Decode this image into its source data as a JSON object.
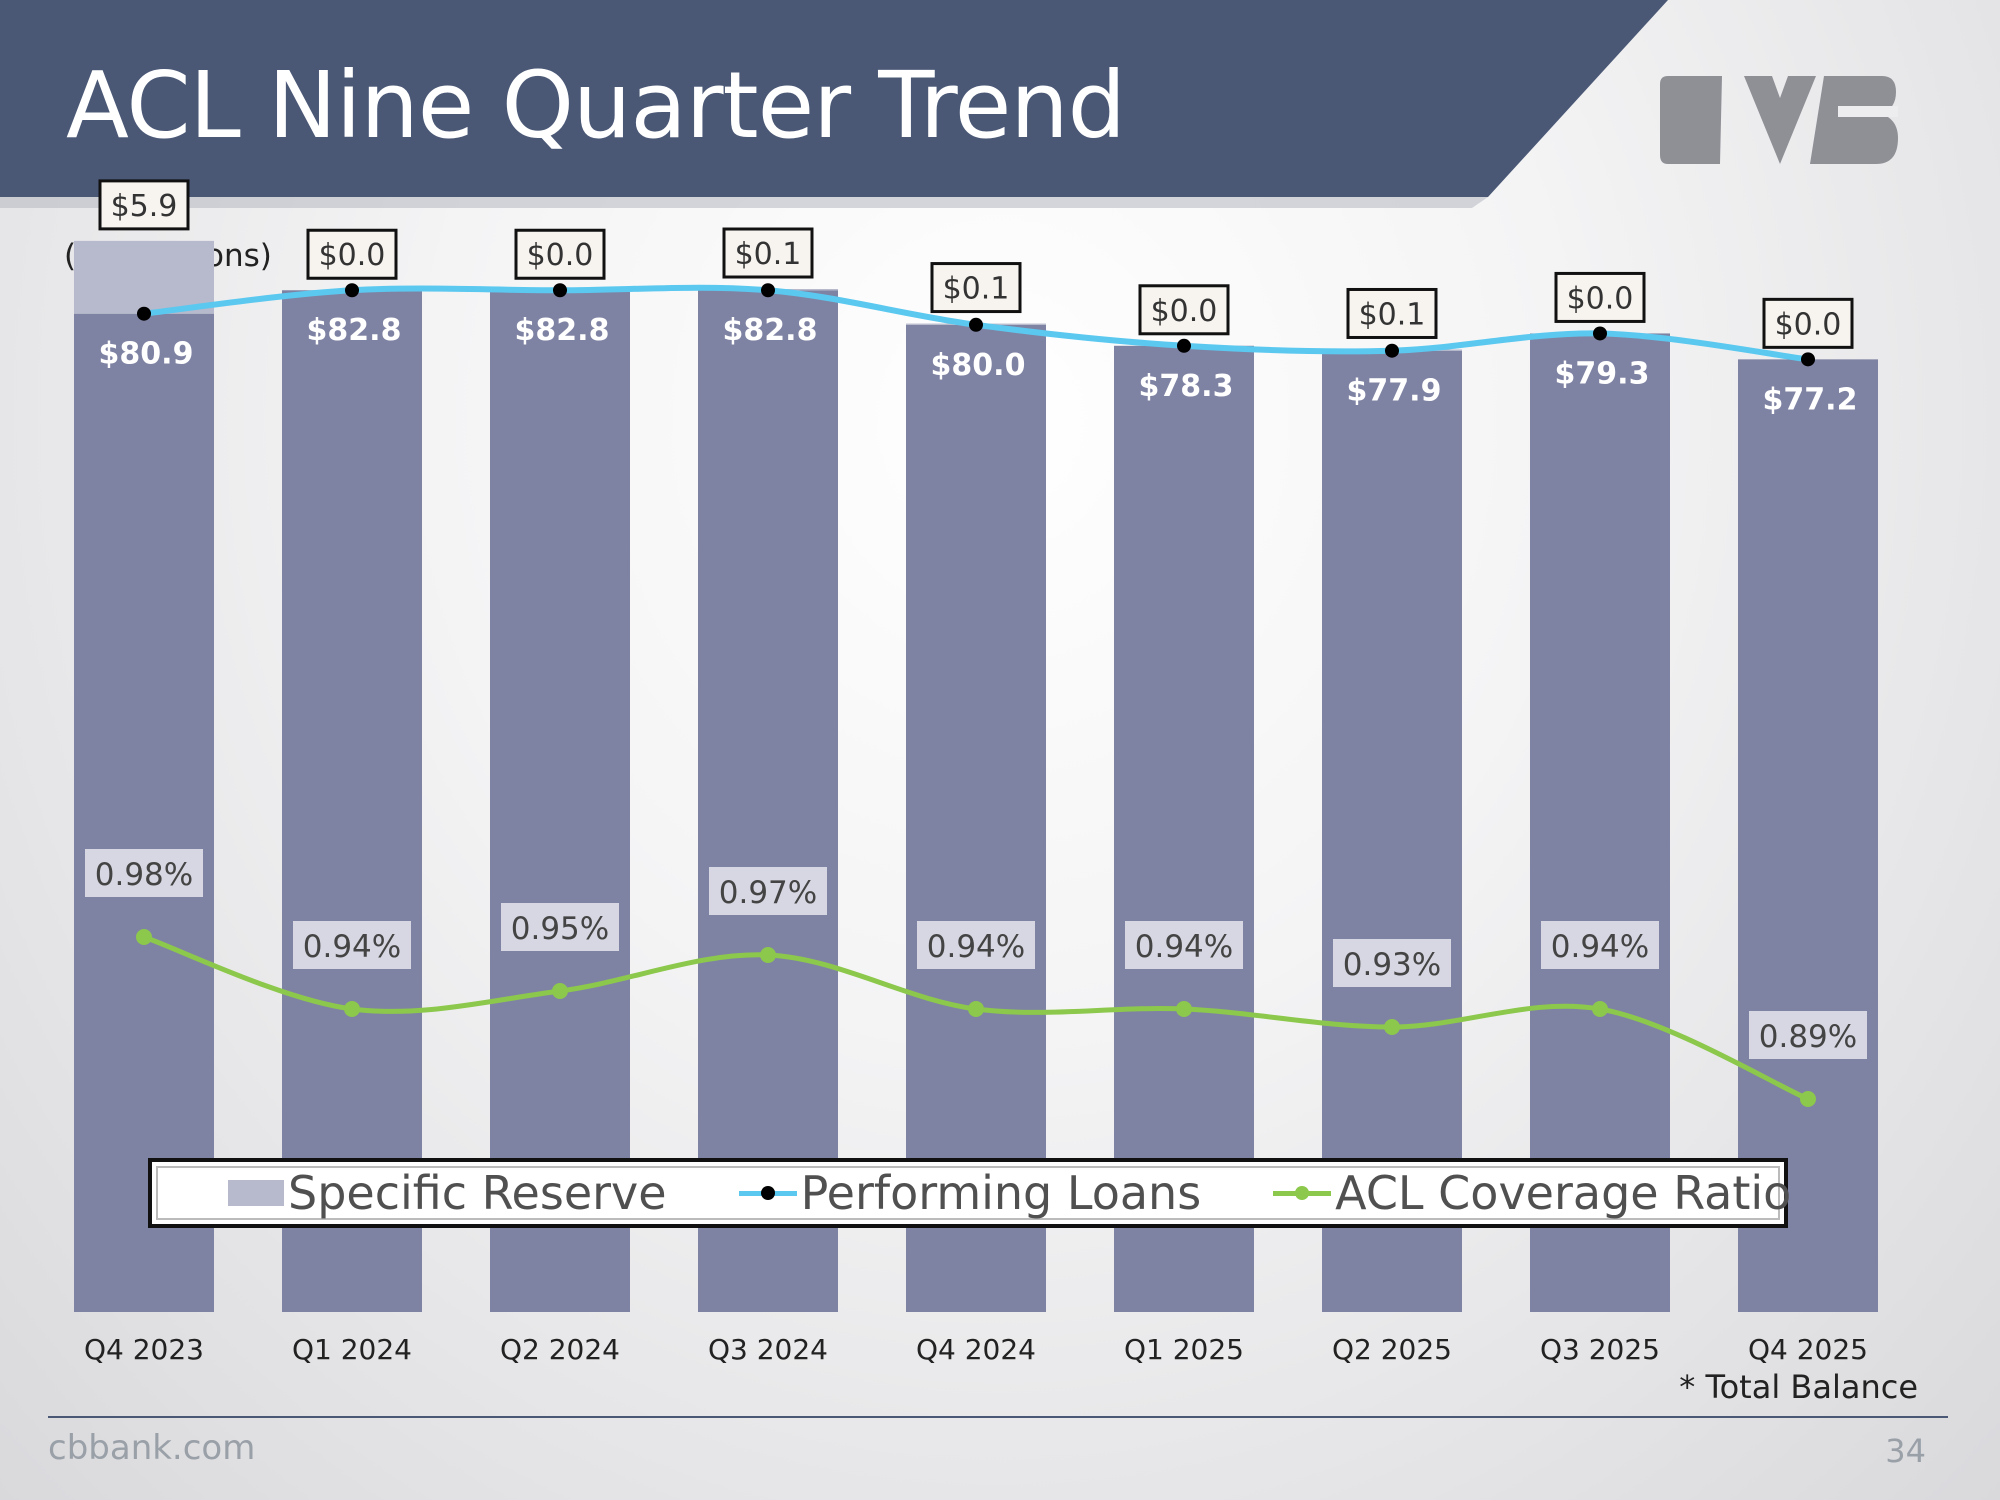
{
  "header": {
    "title": "ACL Nine Quarter Trend"
  },
  "note": "($ in Millions)",
  "footnote": "* Total Balance",
  "footer": {
    "url": "cbbank.com",
    "page_number": "34"
  },
  "colors": {
    "banner": "#4a5876",
    "logo": "#8f9096",
    "performing_bar": "#7f83a3",
    "specific_bar": "#b7b9cc",
    "performing_line": "#5bc8f0",
    "ratio_line": "#8cc84b"
  },
  "legend": {
    "specific": "Specific Reserve",
    "performing": "Performing Loans",
    "ratio": "ACL Coverage Ratio"
  },
  "chart_data": {
    "type": "bar",
    "title": "ACL Nine Quarter Trend",
    "ylabel": "$ in Millions",
    "categories": [
      "Q4 2023",
      "Q1 2024",
      "Q2 2024",
      "Q3 2024",
      "Q4 2024",
      "Q1 2025",
      "Q2 2025",
      "Q3 2025",
      "Q4 2025"
    ],
    "series": [
      {
        "name": "Performing Loans",
        "type": "stacked-bar+line",
        "values": [
          80.9,
          82.8,
          82.8,
          82.8,
          80.0,
          78.3,
          77.9,
          79.3,
          77.2
        ],
        "labels": [
          "$80.9",
          "$82.8",
          "$82.8",
          "$82.8",
          "$80.0",
          "$78.3",
          "$77.9",
          "$79.3",
          "$77.2"
        ]
      },
      {
        "name": "Specific Reserve",
        "type": "stacked-bar",
        "values": [
          5.9,
          0.0,
          0.0,
          0.1,
          0.1,
          0.0,
          0.1,
          0.0,
          0.0
        ],
        "labels": [
          "$5.9",
          "$0.0",
          "$0.0",
          "$0.1",
          "$0.1",
          "$0.0",
          "$0.1",
          "$0.0",
          "$0.0"
        ]
      },
      {
        "name": "ACL Coverage Ratio",
        "type": "line",
        "axis": "secondary",
        "values": [
          0.98,
          0.94,
          0.95,
          0.97,
          0.94,
          0.94,
          0.93,
          0.94,
          0.89
        ],
        "labels": [
          "0.98%",
          "0.94%",
          "0.95%",
          "0.97%",
          "0.94%",
          "0.94%",
          "0.93%",
          "0.94%",
          "0.89%"
        ]
      }
    ],
    "ylim": [
      0,
      92
    ],
    "legend_position": "bottom"
  }
}
